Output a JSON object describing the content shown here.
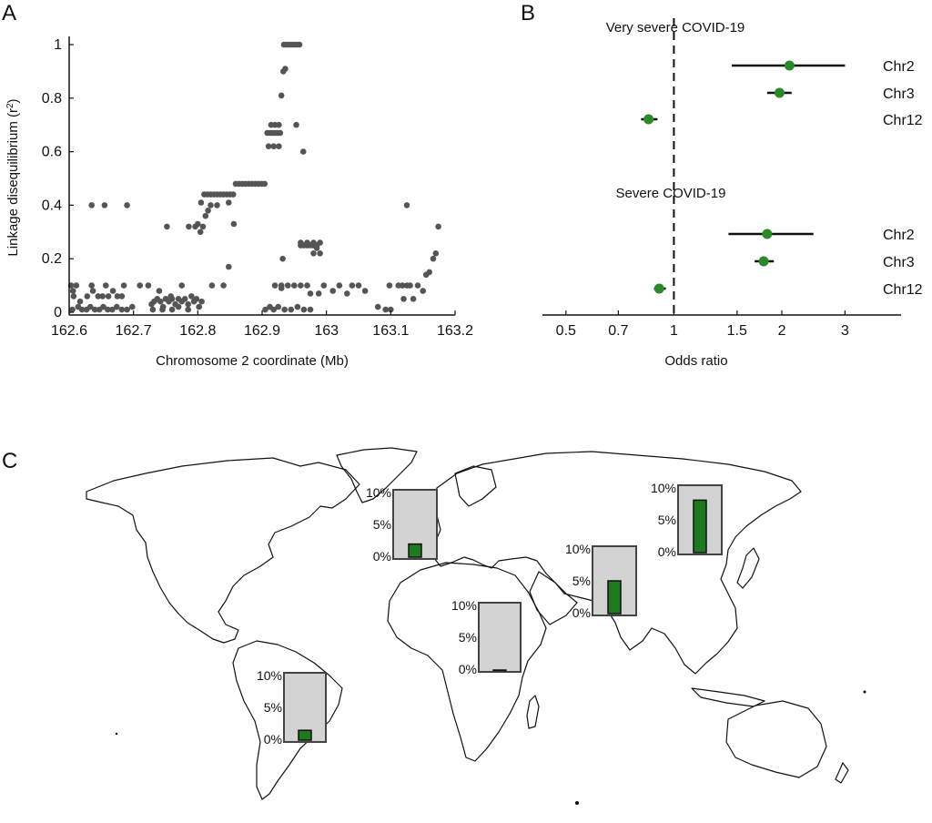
{
  "panels": {
    "a": {
      "label": "A"
    },
    "b": {
      "label": "B"
    },
    "c": {
      "label": "C"
    }
  },
  "chart_data": [
    {
      "panel": "A",
      "type": "scatter",
      "title": "",
      "xlabel": "Chromosome 2 coordinate (Mb)",
      "ylabel_prefix": "Linkage disequilibrium (r",
      "ylabel_sup": "2",
      "ylabel_suffix": ")",
      "xlim": [
        162.6,
        163.2
      ],
      "ylim": [
        0,
        1
      ],
      "xticks": [
        162.6,
        162.7,
        162.8,
        162.9,
        163,
        163.1,
        163.2
      ],
      "xtick_labels": [
        "162.6",
        "162.7",
        "162.8",
        "162.9",
        "163",
        "163.1",
        "163.2"
      ],
      "yticks": [
        0,
        0.2,
        0.4,
        0.6,
        0.8,
        1
      ],
      "ytick_labels": [
        "0",
        "0.2",
        "0.4",
        "0.6",
        "0.8",
        "1"
      ],
      "grid": false,
      "color": "#555555",
      "points": [
        [
          162.603,
          0.1
        ],
        [
          162.607,
          0.06
        ],
        [
          162.611,
          0.1
        ],
        [
          162.605,
          0.01
        ],
        [
          162.614,
          0.02
        ],
        [
          162.62,
          0.01
        ],
        [
          162.627,
          0.01
        ],
        [
          162.633,
          0.02
        ],
        [
          162.64,
          0.01
        ],
        [
          162.647,
          0.01
        ],
        [
          162.653,
          0.02
        ],
        [
          162.66,
          0.01
        ],
        [
          162.667,
          0.01
        ],
        [
          162.674,
          0.02
        ],
        [
          162.682,
          0.01
        ],
        [
          162.69,
          0.01
        ],
        [
          162.698,
          0.02
        ],
        [
          162.606,
          0.08
        ],
        [
          162.628,
          0.06
        ],
        [
          162.637,
          0.08
        ],
        [
          162.645,
          0.06
        ],
        [
          162.652,
          0.06
        ],
        [
          162.661,
          0.06
        ],
        [
          162.668,
          0.08
        ],
        [
          162.675,
          0.06
        ],
        [
          162.682,
          0.06
        ],
        [
          162.617,
          0.04
        ],
        [
          162.635,
          0.1
        ],
        [
          162.657,
          0.1
        ],
        [
          162.685,
          0.1
        ],
        [
          162.71,
          0.1
        ],
        [
          162.723,
          0.1
        ],
        [
          162.74,
          0.08
        ],
        [
          162.758,
          0.06
        ],
        [
          162.775,
          0.1
        ],
        [
          162.635,
          0.4
        ],
        [
          162.655,
          0.4
        ],
        [
          162.69,
          0.4
        ],
        [
          162.752,
          0.32
        ],
        [
          162.786,
          0.32
        ],
        [
          162.796,
          0.32
        ],
        [
          162.728,
          0.03
        ],
        [
          162.732,
          0.04
        ],
        [
          162.737,
          0.05
        ],
        [
          162.742,
          0.04
        ],
        [
          162.746,
          0.02
        ],
        [
          162.75,
          0.05
        ],
        [
          162.755,
          0.04
        ],
        [
          162.76,
          0.05
        ],
        [
          162.765,
          0.03
        ],
        [
          162.77,
          0.05
        ],
        [
          162.775,
          0.04
        ],
        [
          162.78,
          0.05
        ],
        [
          162.785,
          0.03
        ],
        [
          162.79,
          0.06
        ],
        [
          162.794,
          0.04
        ],
        [
          162.798,
          0.05
        ],
        [
          162.802,
          0.02
        ],
        [
          162.806,
          0.04
        ],
        [
          162.73,
          0.01
        ],
        [
          162.745,
          0.01
        ],
        [
          162.76,
          0.01
        ],
        [
          162.77,
          0.02
        ],
        [
          162.785,
          0.01
        ],
        [
          162.8,
          0.33
        ],
        [
          162.804,
          0.3
        ],
        [
          162.808,
          0.32
        ],
        [
          162.812,
          0.36
        ],
        [
          162.816,
          0.38
        ],
        [
          162.82,
          0.4
        ],
        [
          162.805,
          0.41
        ],
        [
          162.81,
          0.44
        ],
        [
          162.815,
          0.44
        ],
        [
          162.82,
          0.44
        ],
        [
          162.825,
          0.44
        ],
        [
          162.83,
          0.44
        ],
        [
          162.835,
          0.44
        ],
        [
          162.84,
          0.44
        ],
        [
          162.845,
          0.44
        ],
        [
          162.85,
          0.44
        ],
        [
          162.855,
          0.44
        ],
        [
          162.83,
          0.4
        ],
        [
          162.848,
          0.41
        ],
        [
          162.856,
          0.33
        ],
        [
          162.848,
          0.17
        ],
        [
          162.84,
          0.1
        ],
        [
          162.822,
          0.1
        ],
        [
          162.859,
          0.48
        ],
        [
          162.864,
          0.48
        ],
        [
          162.869,
          0.48
        ],
        [
          162.874,
          0.48
        ],
        [
          162.879,
          0.48
        ],
        [
          162.884,
          0.48
        ],
        [
          162.889,
          0.48
        ],
        [
          162.894,
          0.48
        ],
        [
          162.899,
          0.48
        ],
        [
          162.904,
          0.48
        ],
        [
          162.908,
          0.67
        ],
        [
          162.912,
          0.67
        ],
        [
          162.916,
          0.67
        ],
        [
          162.92,
          0.67
        ],
        [
          162.924,
          0.67
        ],
        [
          162.928,
          0.67
        ],
        [
          162.91,
          0.62
        ],
        [
          162.918,
          0.62
        ],
        [
          162.926,
          0.62
        ],
        [
          162.914,
          0.7
        ],
        [
          162.92,
          0.7
        ],
        [
          162.926,
          0.7
        ],
        [
          162.93,
          0.81
        ],
        [
          162.933,
          0.9
        ],
        [
          162.936,
          0.91
        ],
        [
          162.934,
          1.0
        ],
        [
          162.938,
          1.0
        ],
        [
          162.942,
          1.0
        ],
        [
          162.946,
          1.0
        ],
        [
          162.95,
          1.0
        ],
        [
          162.954,
          1.0
        ],
        [
          162.958,
          1.0
        ],
        [
          162.953,
          0.7
        ],
        [
          162.964,
          0.6
        ],
        [
          162.932,
          0.2
        ],
        [
          162.93,
          0.09
        ],
        [
          162.92,
          0.1
        ],
        [
          162.93,
          0.1
        ],
        [
          162.94,
          0.1
        ],
        [
          162.95,
          0.1
        ],
        [
          162.96,
          0.1
        ],
        [
          162.905,
          0.01
        ],
        [
          162.912,
          0.02
        ],
        [
          162.918,
          0.01
        ],
        [
          162.925,
          0.02
        ],
        [
          162.935,
          0.01
        ],
        [
          162.945,
          0.01
        ],
        [
          162.955,
          0.02
        ],
        [
          162.965,
          0.01
        ],
        [
          162.975,
          0.01
        ],
        [
          162.96,
          0.25
        ],
        [
          162.965,
          0.25
        ],
        [
          162.97,
          0.25
        ],
        [
          162.975,
          0.25
        ],
        [
          162.98,
          0.25
        ],
        [
          162.985,
          0.25
        ],
        [
          162.96,
          0.26
        ],
        [
          162.97,
          0.26
        ],
        [
          162.98,
          0.26
        ],
        [
          162.99,
          0.26
        ],
        [
          162.98,
          0.22
        ],
        [
          162.99,
          0.22
        ],
        [
          162.985,
          0.24
        ],
        [
          162.97,
          0.1
        ],
        [
          162.975,
          0.07
        ],
        [
          162.988,
          0.07
        ],
        [
          162.996,
          0.1
        ],
        [
          163.01,
          0.08
        ],
        [
          163.02,
          0.1
        ],
        [
          163.032,
          0.07
        ],
        [
          163.04,
          0.1
        ],
        [
          163.05,
          0.1
        ],
        [
          163.06,
          0.08
        ],
        [
          163.08,
          0.02
        ],
        [
          163.092,
          0.01
        ],
        [
          163.1,
          0.01
        ],
        [
          163.098,
          0.1
        ],
        [
          163.112,
          0.1
        ],
        [
          163.118,
          0.1
        ],
        [
          163.125,
          0.1
        ],
        [
          163.13,
          0.1
        ],
        [
          163.142,
          0.1
        ],
        [
          163.15,
          0.08
        ],
        [
          163.12,
          0.05
        ],
        [
          163.135,
          0.05
        ],
        [
          163.125,
          0.4
        ],
        [
          163.155,
          0.14
        ],
        [
          163.16,
          0.15
        ],
        [
          163.166,
          0.2
        ],
        [
          163.17,
          0.22
        ],
        [
          163.174,
          0.32
        ]
      ]
    },
    {
      "panel": "B",
      "type": "forest",
      "title": "",
      "xlabel": "Odds ratio",
      "xscale": "log",
      "xlim": [
        0.43,
        4.3
      ],
      "xticks": [
        0.5,
        0.7,
        1,
        1.5,
        2,
        3
      ],
      "xtick_labels": [
        "0.5",
        "0.7",
        "1",
        "1.5",
        "2",
        "3"
      ],
      "reference_line": 1,
      "marker_color": "#2a8a2a",
      "groups": [
        {
          "name": "Very severe COVID-19",
          "rows": [
            {
              "label": "Chr2",
              "or": 2.1,
              "lo": 1.45,
              "hi": 3.0
            },
            {
              "label": "Chr3",
              "or": 1.97,
              "lo": 1.82,
              "hi": 2.13
            },
            {
              "label": "Chr12",
              "or": 0.85,
              "lo": 0.81,
              "hi": 0.9
            }
          ]
        },
        {
          "name": "Severe COVID-19",
          "rows": [
            {
              "label": "Chr2",
              "or": 1.82,
              "lo": 1.42,
              "hi": 2.45
            },
            {
              "label": "Chr3",
              "or": 1.78,
              "lo": 1.68,
              "hi": 1.9
            },
            {
              "label": "Chr12",
              "or": 0.91,
              "lo": 0.88,
              "hi": 0.95
            }
          ]
        }
      ]
    },
    {
      "panel": "C",
      "type": "bar",
      "title": "",
      "map_background": "world outline",
      "ylim": [
        0,
        10
      ],
      "ytick_labels": [
        "10%",
        "5%",
        "0%"
      ],
      "box_fill": "#d3d3d3",
      "bar_fill": "#1e7a1e",
      "insets": [
        {
          "region": "Europe",
          "value": 2.0
        },
        {
          "region": "Africa",
          "value": 0.0
        },
        {
          "region": "South Asia",
          "value": 5.0
        },
        {
          "region": "East Asia",
          "value": 8.0
        },
        {
          "region": "Americas",
          "value": 1.5
        }
      ]
    }
  ]
}
